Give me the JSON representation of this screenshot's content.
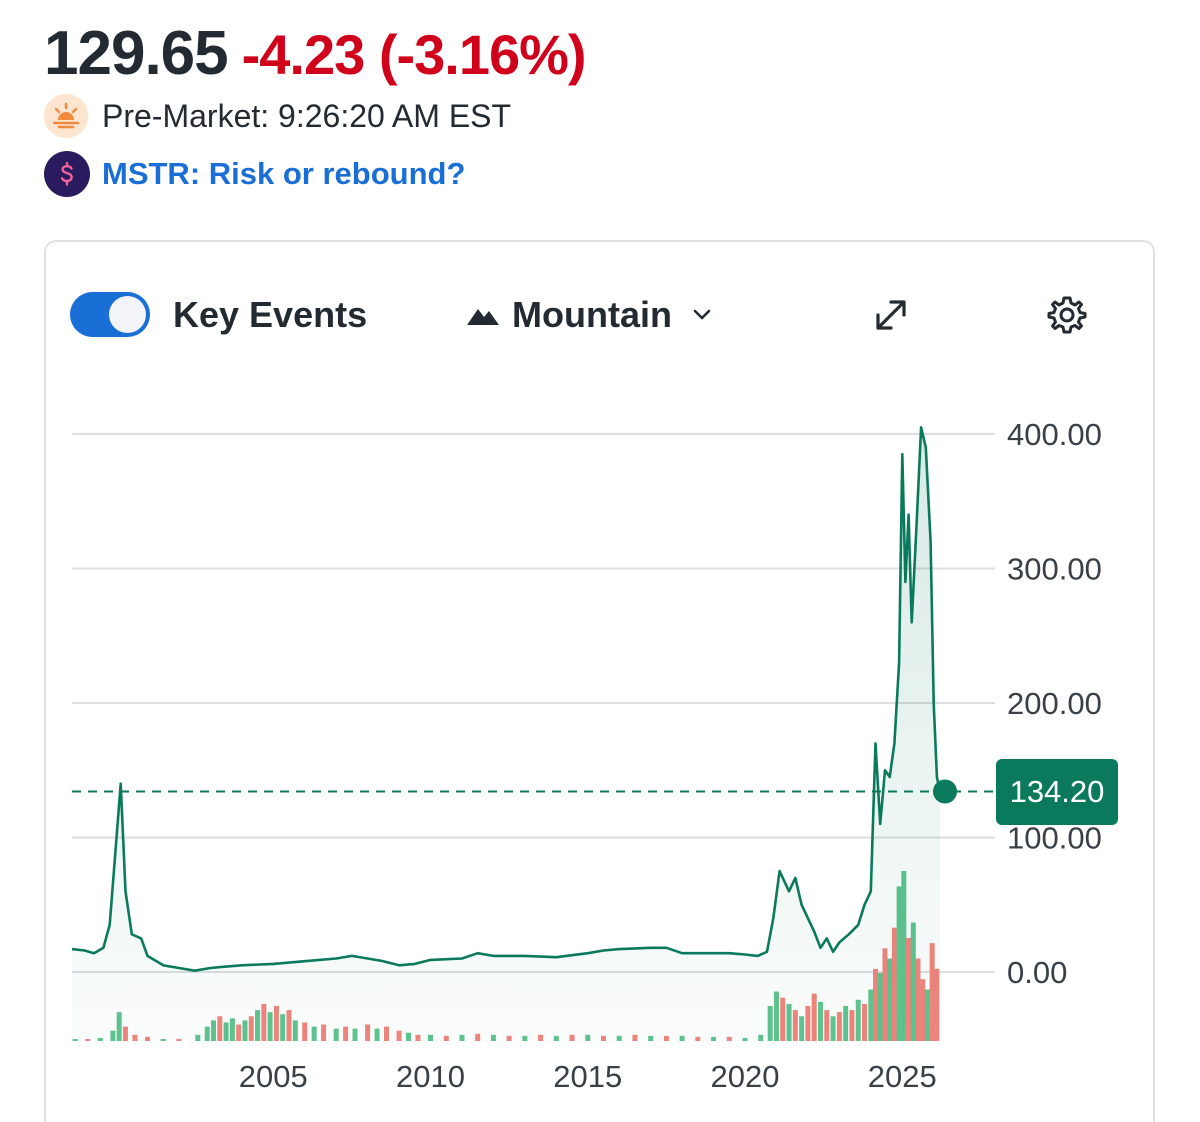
{
  "quote": {
    "price": "129.65",
    "change": "-4.23 (-3.16%)",
    "change_color": "#d0021b"
  },
  "premarket": {
    "icon": "sunrise-icon",
    "text": "Pre-Market: 9:26:20 AM EST"
  },
  "insight": {
    "icon": "dollar-icon",
    "link_text": "MSTR: Risk or rebound?",
    "link_color": "#1a6fd6"
  },
  "toolbar": {
    "key_events_label": "Key Events",
    "key_events_on": true,
    "chart_type_label": "Mountain",
    "chart_type_icon": "mountain-icon",
    "expand_icon": "expand-icon",
    "settings_icon": "gear-icon"
  },
  "chart_data": {
    "type": "area",
    "title": "",
    "xlabel": "",
    "ylabel": "",
    "x_ticks": [
      "2005",
      "2010",
      "2015",
      "2020",
      "2025"
    ],
    "y_ticks": [
      "0.00",
      "100.00",
      "200.00",
      "300.00",
      "400.00"
    ],
    "ylim": [
      0,
      400
    ],
    "xlim": [
      1998.6,
      2026.2
    ],
    "grid": true,
    "line_color": "#0b7a5c",
    "last_value_label": "134.20",
    "series": [
      {
        "points": [
          [
            1998.6,
            17
          ],
          [
            1999.0,
            16
          ],
          [
            1999.3,
            14
          ],
          [
            1999.6,
            18
          ],
          [
            1999.8,
            35
          ],
          [
            2000.0,
            95
          ],
          [
            2000.15,
            140
          ],
          [
            2000.3,
            60
          ],
          [
            2000.5,
            28
          ],
          [
            2000.8,
            25
          ],
          [
            2001.0,
            12
          ],
          [
            2001.5,
            5
          ],
          [
            2002.0,
            3
          ],
          [
            2002.5,
            1
          ],
          [
            2003.0,
            3
          ],
          [
            2003.5,
            4
          ],
          [
            2004.0,
            5
          ],
          [
            2005.0,
            6
          ],
          [
            2006.0,
            8
          ],
          [
            2007.0,
            10
          ],
          [
            2007.5,
            12
          ],
          [
            2008.0,
            10
          ],
          [
            2008.5,
            8
          ],
          [
            2009.0,
            5
          ],
          [
            2009.5,
            6
          ],
          [
            2010.0,
            9
          ],
          [
            2011.0,
            10
          ],
          [
            2011.5,
            14
          ],
          [
            2012.0,
            12
          ],
          [
            2013.0,
            12
          ],
          [
            2014.0,
            11
          ],
          [
            2015.0,
            14
          ],
          [
            2015.5,
            16
          ],
          [
            2016.0,
            17
          ],
          [
            2017.0,
            18
          ],
          [
            2017.5,
            18
          ],
          [
            2018.0,
            14
          ],
          [
            2019.0,
            14
          ],
          [
            2019.5,
            14
          ],
          [
            2020.0,
            13
          ],
          [
            2020.4,
            12
          ],
          [
            2020.7,
            15
          ],
          [
            2020.9,
            40
          ],
          [
            2021.1,
            75
          ],
          [
            2021.4,
            60
          ],
          [
            2021.6,
            70
          ],
          [
            2021.8,
            50
          ],
          [
            2022.0,
            40
          ],
          [
            2022.2,
            30
          ],
          [
            2022.4,
            18
          ],
          [
            2022.6,
            25
          ],
          [
            2022.8,
            15
          ],
          [
            2023.0,
            22
          ],
          [
            2023.3,
            28
          ],
          [
            2023.6,
            35
          ],
          [
            2023.8,
            50
          ],
          [
            2024.0,
            60
          ],
          [
            2024.15,
            170
          ],
          [
            2024.3,
            110
          ],
          [
            2024.45,
            150
          ],
          [
            2024.6,
            145
          ],
          [
            2024.75,
            170
          ],
          [
            2024.9,
            230
          ],
          [
            2025.0,
            385
          ],
          [
            2025.1,
            290
          ],
          [
            2025.2,
            340
          ],
          [
            2025.3,
            260
          ],
          [
            2025.45,
            330
          ],
          [
            2025.6,
            405
          ],
          [
            2025.75,
            390
          ],
          [
            2025.9,
            320
          ],
          [
            2026.0,
            200
          ],
          [
            2026.1,
            145
          ],
          [
            2026.2,
            134.2
          ]
        ]
      }
    ],
    "volume": [
      {
        "x": 1998.7,
        "v": 2,
        "up": true
      },
      {
        "x": 1999.1,
        "v": 2,
        "up": false
      },
      {
        "x": 1999.5,
        "v": 3,
        "up": true
      },
      {
        "x": 1999.9,
        "v": 10,
        "up": true
      },
      {
        "x": 2000.1,
        "v": 28,
        "up": true
      },
      {
        "x": 2000.3,
        "v": 14,
        "up": false
      },
      {
        "x": 2000.6,
        "v": 6,
        "up": false
      },
      {
        "x": 2001.0,
        "v": 4,
        "up": false
      },
      {
        "x": 2001.5,
        "v": 2,
        "up": true
      },
      {
        "x": 2002.0,
        "v": 2,
        "up": false
      },
      {
        "x": 2002.6,
        "v": 6,
        "up": true
      },
      {
        "x": 2002.9,
        "v": 14,
        "up": true
      },
      {
        "x": 2003.1,
        "v": 20,
        "up": true
      },
      {
        "x": 2003.3,
        "v": 24,
        "up": false
      },
      {
        "x": 2003.5,
        "v": 18,
        "up": true
      },
      {
        "x": 2003.7,
        "v": 22,
        "up": true
      },
      {
        "x": 2003.9,
        "v": 16,
        "up": false
      },
      {
        "x": 2004.1,
        "v": 20,
        "up": true
      },
      {
        "x": 2004.3,
        "v": 24,
        "up": false
      },
      {
        "x": 2004.5,
        "v": 30,
        "up": true
      },
      {
        "x": 2004.7,
        "v": 36,
        "up": false
      },
      {
        "x": 2004.9,
        "v": 28,
        "up": true
      },
      {
        "x": 2005.1,
        "v": 34,
        "up": false
      },
      {
        "x": 2005.3,
        "v": 26,
        "up": true
      },
      {
        "x": 2005.5,
        "v": 30,
        "up": false
      },
      {
        "x": 2005.7,
        "v": 20,
        "up": true
      },
      {
        "x": 2006.0,
        "v": 18,
        "up": false
      },
      {
        "x": 2006.3,
        "v": 14,
        "up": true
      },
      {
        "x": 2006.6,
        "v": 16,
        "up": false
      },
      {
        "x": 2007.0,
        "v": 12,
        "up": true
      },
      {
        "x": 2007.3,
        "v": 14,
        "up": false
      },
      {
        "x": 2007.6,
        "v": 12,
        "up": true
      },
      {
        "x": 2008.0,
        "v": 16,
        "up": false
      },
      {
        "x": 2008.3,
        "v": 12,
        "up": true
      },
      {
        "x": 2008.6,
        "v": 14,
        "up": false
      },
      {
        "x": 2009.0,
        "v": 10,
        "up": false
      },
      {
        "x": 2009.3,
        "v": 8,
        "up": true
      },
      {
        "x": 2009.6,
        "v": 6,
        "up": false
      },
      {
        "x": 2010.0,
        "v": 6,
        "up": true
      },
      {
        "x": 2010.5,
        "v": 5,
        "up": false
      },
      {
        "x": 2011.0,
        "v": 6,
        "up": true
      },
      {
        "x": 2011.5,
        "v": 7,
        "up": false
      },
      {
        "x": 2012.0,
        "v": 6,
        "up": true
      },
      {
        "x": 2012.5,
        "v": 5,
        "up": false
      },
      {
        "x": 2013.0,
        "v": 5,
        "up": true
      },
      {
        "x": 2013.5,
        "v": 6,
        "up": false
      },
      {
        "x": 2014.0,
        "v": 5,
        "up": true
      },
      {
        "x": 2014.5,
        "v": 6,
        "up": false
      },
      {
        "x": 2015.0,
        "v": 6,
        "up": true
      },
      {
        "x": 2015.5,
        "v": 5,
        "up": false
      },
      {
        "x": 2016.0,
        "v": 5,
        "up": true
      },
      {
        "x": 2016.5,
        "v": 6,
        "up": false
      },
      {
        "x": 2017.0,
        "v": 5,
        "up": true
      },
      {
        "x": 2017.5,
        "v": 5,
        "up": false
      },
      {
        "x": 2018.0,
        "v": 5,
        "up": true
      },
      {
        "x": 2018.5,
        "v": 4,
        "up": false
      },
      {
        "x": 2019.0,
        "v": 4,
        "up": true
      },
      {
        "x": 2019.5,
        "v": 4,
        "up": false
      },
      {
        "x": 2020.0,
        "v": 3,
        "up": true
      },
      {
        "x": 2020.5,
        "v": 6,
        "up": true
      },
      {
        "x": 2020.8,
        "v": 34,
        "up": true
      },
      {
        "x": 2021.0,
        "v": 48,
        "up": true
      },
      {
        "x": 2021.2,
        "v": 42,
        "up": false
      },
      {
        "x": 2021.4,
        "v": 36,
        "up": true
      },
      {
        "x": 2021.6,
        "v": 30,
        "up": false
      },
      {
        "x": 2021.8,
        "v": 24,
        "up": true
      },
      {
        "x": 2022.0,
        "v": 34,
        "up": false
      },
      {
        "x": 2022.2,
        "v": 46,
        "up": false
      },
      {
        "x": 2022.4,
        "v": 38,
        "up": true
      },
      {
        "x": 2022.6,
        "v": 30,
        "up": false
      },
      {
        "x": 2022.8,
        "v": 24,
        "up": true
      },
      {
        "x": 2023.0,
        "v": 28,
        "up": false
      },
      {
        "x": 2023.2,
        "v": 34,
        "up": true
      },
      {
        "x": 2023.4,
        "v": 30,
        "up": false
      },
      {
        "x": 2023.6,
        "v": 40,
        "up": true
      },
      {
        "x": 2023.8,
        "v": 36,
        "up": false
      },
      {
        "x": 2024.0,
        "v": 50,
        "up": true
      },
      {
        "x": 2024.15,
        "v": 70,
        "up": false
      },
      {
        "x": 2024.3,
        "v": 66,
        "up": true
      },
      {
        "x": 2024.45,
        "v": 90,
        "up": false
      },
      {
        "x": 2024.6,
        "v": 80,
        "up": true
      },
      {
        "x": 2024.75,
        "v": 110,
        "up": false
      },
      {
        "x": 2024.9,
        "v": 150,
        "up": true
      },
      {
        "x": 2025.05,
        "v": 165,
        "up": true
      },
      {
        "x": 2025.2,
        "v": 100,
        "up": false
      },
      {
        "x": 2025.35,
        "v": 115,
        "up": true
      },
      {
        "x": 2025.5,
        "v": 80,
        "up": false
      },
      {
        "x": 2025.65,
        "v": 60,
        "up": false
      },
      {
        "x": 2025.8,
        "v": 50,
        "up": true
      },
      {
        "x": 2025.95,
        "v": 95,
        "up": false
      },
      {
        "x": 2026.1,
        "v": 70,
        "up": false
      }
    ],
    "volume_colors": {
      "up": "#5fc48e",
      "down": "#f2847c"
    }
  }
}
